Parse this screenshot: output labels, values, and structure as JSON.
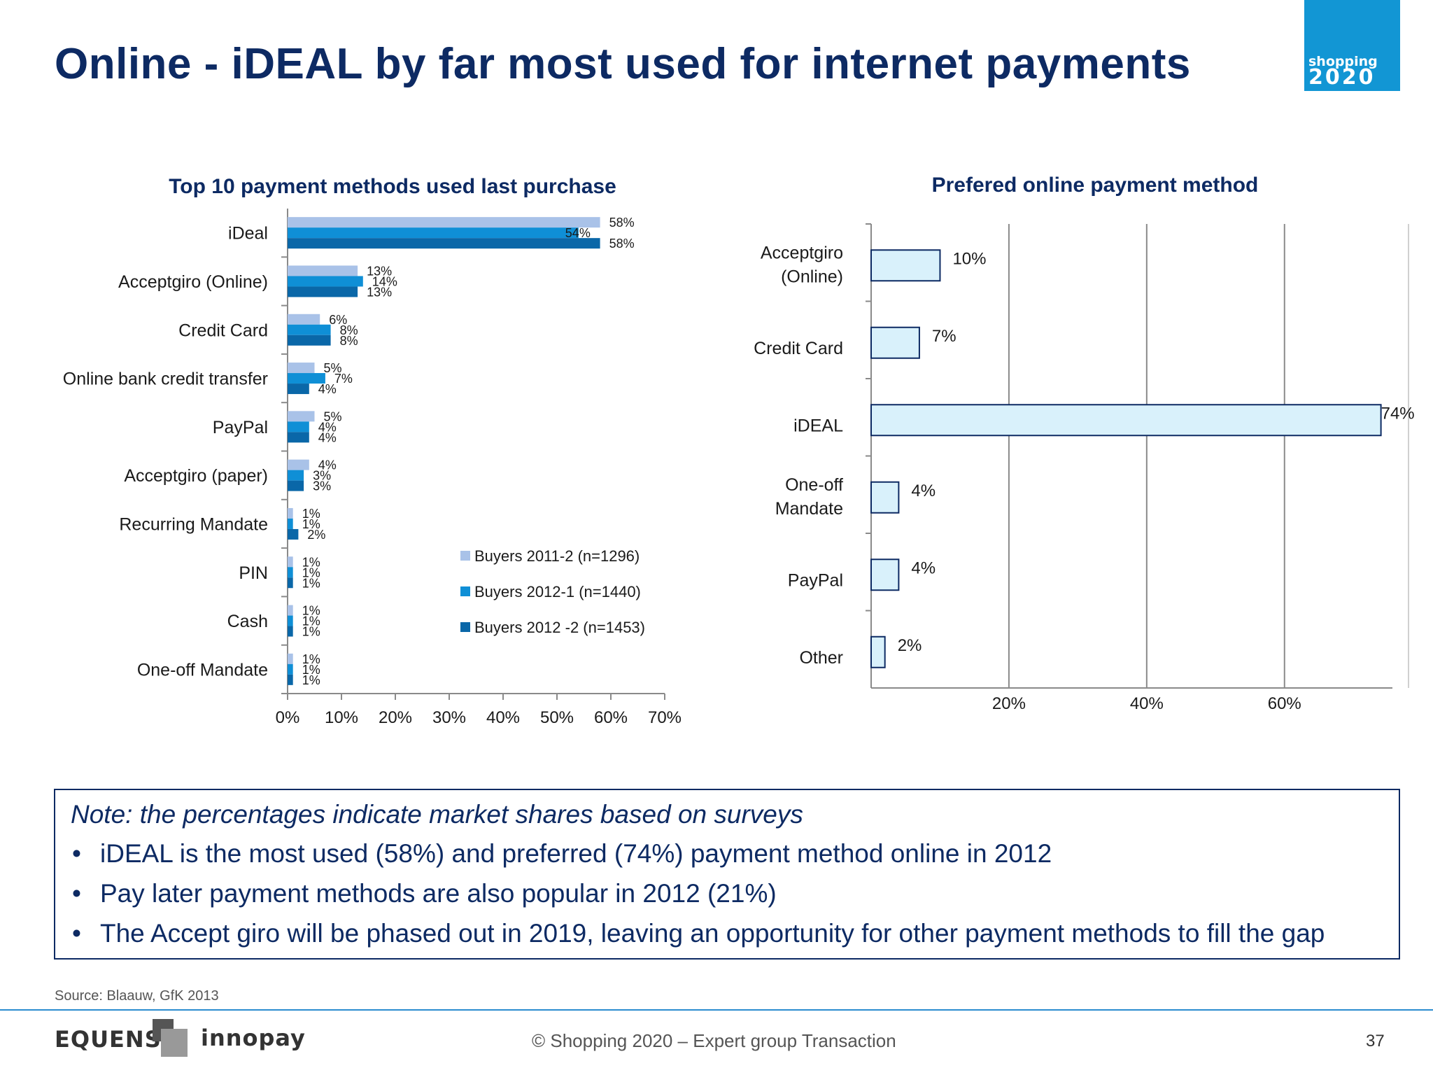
{
  "slide": {
    "title": "Online - iDEAL by far most used for internet payments",
    "logo": {
      "line1": "shopping",
      "line2": "2020"
    },
    "note": {
      "heading": "Note: the percentages indicate market shares based on surveys",
      "bullets": [
        "iDEAL is the most used (58%) and preferred (74%) payment method online in 2012",
        "Pay later payment methods are also popular in 2012 (21%)",
        "The Accept giro will be phased out in 2019, leaving an opportunity for other payment methods to fill the gap"
      ],
      "bullet_glyph": "•"
    },
    "source": "Source: Blaauw, GfK 2013",
    "footer": {
      "brand1": "EQUENS",
      "brand2": "innopay",
      "copyright": "© Shopping 2020 – Expert group Transaction",
      "page_number": "37"
    }
  },
  "chart_data": [
    {
      "type": "bar",
      "orientation": "horizontal",
      "title": "Top 10 payment methods used last purchase",
      "categories": [
        "iDeal",
        "Acceptgiro (Online)",
        "Credit Card",
        "Online bank credit transfer",
        "PayPal",
        "Acceptgiro (paper)",
        "Recurring Mandate",
        "PIN",
        "Cash",
        "One-off Mandate"
      ],
      "series": [
        {
          "name": "Buyers 2011-2 (n=1296)",
          "color": "#a9c2e8",
          "values": [
            58,
            13,
            6,
            5,
            5,
            4,
            1,
            1,
            1,
            1
          ]
        },
        {
          "name": "Buyers 2012-1 (n=1440)",
          "color": "#0f8fd6",
          "values": [
            54,
            14,
            8,
            7,
            4,
            3,
            1,
            1,
            1,
            1
          ]
        },
        {
          "name": "Buyers 2012 -2 (n=1453)",
          "color": "#0a67a8",
          "values": [
            58,
            13,
            8,
            4,
            4,
            3,
            2,
            1,
            1,
            1
          ]
        }
      ],
      "xlim": [
        0,
        70
      ],
      "xticks": [
        0,
        10,
        20,
        30,
        40,
        50,
        60,
        70
      ],
      "xtick_labels": [
        "0%",
        "10%",
        "20%",
        "30%",
        "40%",
        "50%",
        "60%",
        "70%"
      ],
      "value_suffix": "%",
      "legend_position": "lower-right",
      "grid": false
    },
    {
      "type": "bar",
      "orientation": "horizontal",
      "title": "Prefered online payment method",
      "categories": [
        "Acceptgiro\n(Online)",
        "Credit Card",
        "iDEAL",
        "One-off\nMandate",
        "PayPal",
        "Other"
      ],
      "values": [
        10,
        7,
        74,
        4,
        4,
        2
      ],
      "color": "#d9f1fb",
      "edge_color": "#0d2a63",
      "xlim": [
        0,
        78
      ],
      "xticks": [
        20,
        40,
        60
      ],
      "xtick_labels": [
        "20%",
        "40%",
        "60%"
      ],
      "value_suffix": "%",
      "grid": true
    }
  ]
}
